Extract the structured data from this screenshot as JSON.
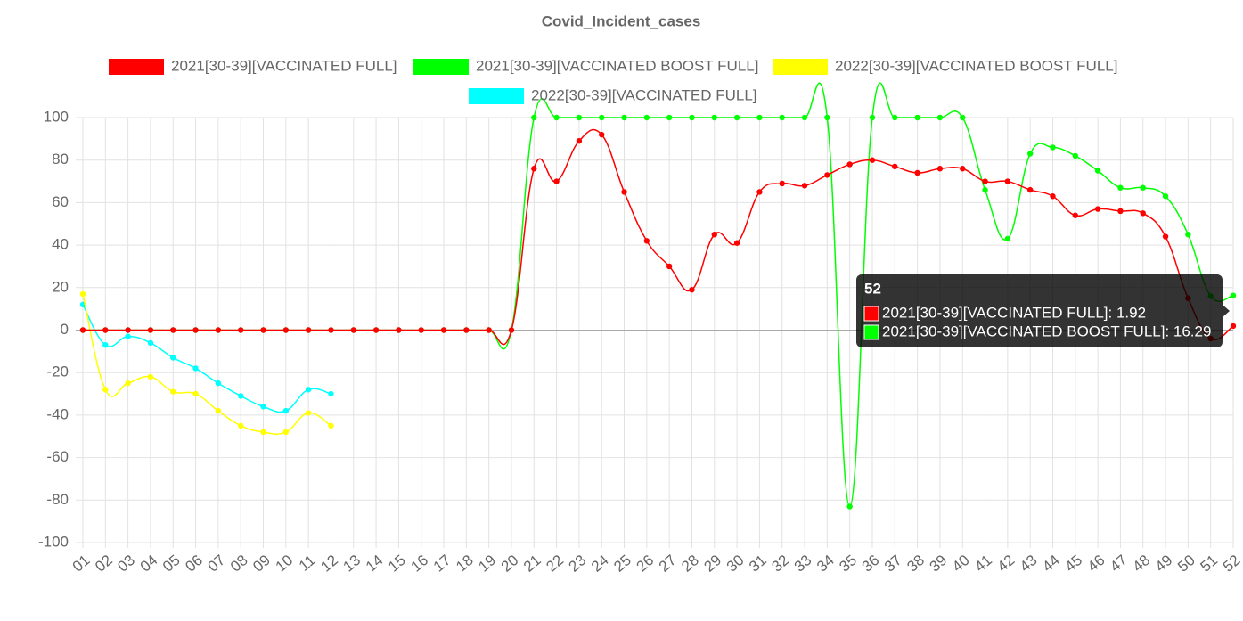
{
  "chart_data": {
    "type": "line",
    "title": "Covid_Incident_cases",
    "categories": [
      "01",
      "02",
      "03",
      "04",
      "05",
      "06",
      "07",
      "08",
      "09",
      "10",
      "11",
      "12",
      "13",
      "14",
      "15",
      "16",
      "17",
      "18",
      "19",
      "20",
      "21",
      "22",
      "23",
      "24",
      "25",
      "26",
      "27",
      "28",
      "29",
      "30",
      "31",
      "32",
      "33",
      "34",
      "35",
      "36",
      "37",
      "38",
      "39",
      "40",
      "41",
      "42",
      "43",
      "44",
      "45",
      "46",
      "47",
      "48",
      "49",
      "50",
      "51",
      "52"
    ],
    "series": [
      {
        "name": "2021[30-39][VACCINATED FULL]",
        "color": "#ff0000",
        "values": [
          0,
          0,
          0,
          0,
          0,
          0,
          0,
          0,
          0,
          0,
          0,
          0,
          0,
          0,
          0,
          0,
          0,
          0,
          0,
          0,
          76,
          70,
          89,
          92,
          65,
          42,
          30,
          19,
          45,
          41,
          65,
          69,
          68,
          73,
          78,
          80,
          77,
          74,
          76,
          76,
          70,
          70,
          66,
          63,
          54,
          57,
          56,
          55,
          44,
          15,
          -4,
          1.92
        ]
      },
      {
        "name": "2021[30-39][VACCINATED BOOST FULL]",
        "color": "#00ff00",
        "values": [
          0,
          0,
          0,
          0,
          0,
          0,
          0,
          0,
          0,
          0,
          0,
          0,
          0,
          0,
          0,
          0,
          0,
          0,
          0,
          0,
          100,
          100,
          100,
          100,
          100,
          100,
          100,
          100,
          100,
          100,
          100,
          100,
          100,
          100,
          -83,
          100,
          100,
          100,
          100,
          100,
          66,
          43,
          83,
          86,
          82,
          75,
          67,
          67,
          63,
          45,
          16,
          16.29
        ]
      },
      {
        "name": "2022[30-39][VACCINATED BOOST FULL]",
        "color": "#ffff00",
        "values": [
          17,
          -28,
          -25,
          -22,
          -29,
          -30,
          -38,
          -45,
          -48,
          -48,
          -39,
          -45,
          null,
          null,
          null,
          null,
          null,
          null,
          null,
          null,
          null,
          null,
          null,
          null,
          null,
          null,
          null,
          null,
          null,
          null,
          null,
          null,
          null,
          null,
          null,
          null,
          null,
          null,
          null,
          null,
          null,
          null,
          null,
          null,
          null,
          null,
          null,
          null,
          null,
          null,
          null,
          null
        ]
      },
      {
        "name": "2022[30-39][VACCINATED FULL]",
        "color": "#00ffff",
        "values": [
          12,
          -7,
          -3,
          -6,
          -13,
          -18,
          -25,
          -31,
          -36,
          -38,
          -28,
          -30,
          null,
          null,
          null,
          null,
          null,
          null,
          null,
          null,
          null,
          null,
          null,
          null,
          null,
          null,
          null,
          null,
          null,
          null,
          null,
          null,
          null,
          null,
          null,
          null,
          null,
          null,
          null,
          null,
          null,
          null,
          null,
          null,
          null,
          null,
          null,
          null,
          null,
          null,
          null,
          null
        ]
      }
    ],
    "ylim": [
      -100,
      100
    ],
    "yticks": [
      -100,
      -80,
      -60,
      -40,
      -20,
      0,
      20,
      40,
      60,
      80,
      100
    ],
    "grid": true,
    "tooltip": {
      "title": "52",
      "lines": [
        "2021[30-39][VACCINATED FULL]: 1.92",
        "2021[30-39][VACCINATED BOOST FULL]: 16.29"
      ]
    }
  }
}
